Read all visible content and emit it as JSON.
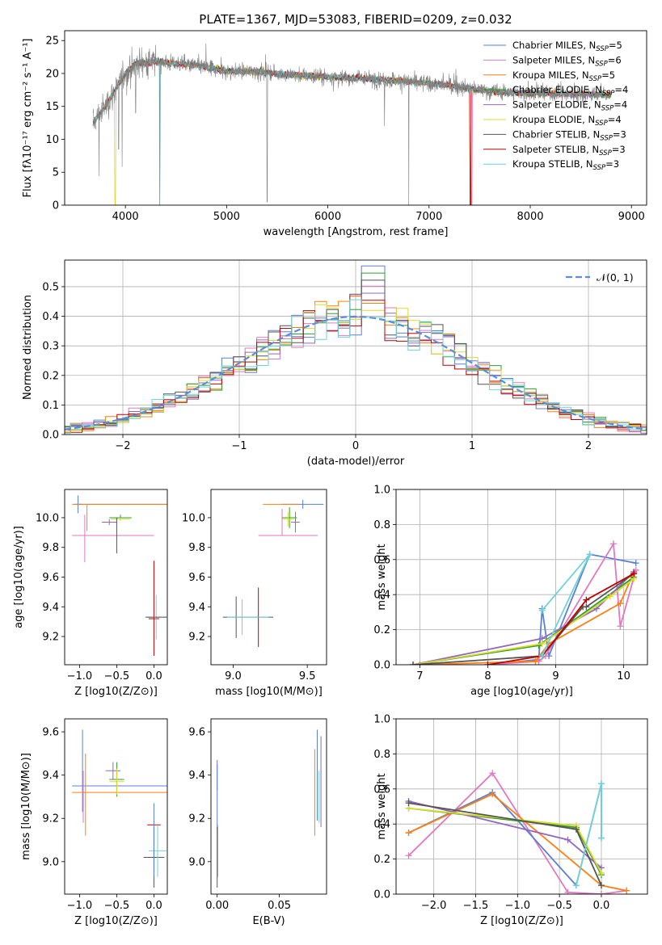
{
  "colors": {
    "chabrier_miles": "#5b7fd6",
    "salpeter_miles": "#e377c2",
    "kroupa_miles": "#ff7f0e",
    "chabrier_elodie": "#2ca02c",
    "salpeter_elodie": "#9467bd",
    "kroupa_elodie": "#dbdb2d",
    "chabrier_stelib": "#555555",
    "salpeter_stelib": "#c00000",
    "kroupa_stelib": "#6dd3d8",
    "normal_fit": "#5b8ed6",
    "grid": "#b0b0b0"
  },
  "chart_data": [
    {
      "id": "spectrum",
      "type": "line",
      "title": "PLATE=1367, MJD=53083, FIBERID=0209, z=0.032",
      "xlabel": "wavelength [Angstrom, rest frame]",
      "ylabel": "Flux [fλ10⁻¹⁷ erg cm⁻² s⁻¹ A⁻¹]",
      "xlim": [
        3400,
        9150
      ],
      "ylim": [
        0,
        26.5
      ],
      "xticks": [
        4000,
        5000,
        6000,
        7000,
        8000,
        9000
      ],
      "yticks": [
        0,
        5,
        10,
        15,
        20,
        25
      ],
      "grid": false,
      "legend": "top-right",
      "legend_entries": [
        {
          "prefix": "Chabrier MILES, N",
          "sub": "SSP",
          "suffix": "=5",
          "color": "chabrier_miles"
        },
        {
          "prefix": "Salpeter MILES, N",
          "sub": "SSP",
          "suffix": "=6",
          "color": "salpeter_miles"
        },
        {
          "prefix": "Kroupa MILES, N",
          "sub": "SSP",
          "suffix": "=5",
          "color": "kroupa_miles"
        },
        {
          "prefix": "Chabrier ELODIE, N",
          "sub": "SSP",
          "suffix": "=4",
          "color": "chabrier_elodie"
        },
        {
          "prefix": "Salpeter ELODIE, N",
          "sub": "SSP",
          "suffix": "=4",
          "color": "salpeter_elodie"
        },
        {
          "prefix": "Kroupa ELODIE, N",
          "sub": "SSP",
          "suffix": "=4",
          "color": "kroupa_elodie"
        },
        {
          "prefix": "Chabrier STELIB, N",
          "sub": "SSP",
          "suffix": "=3",
          "color": "chabrier_stelib"
        },
        {
          "prefix": "Salpeter STELIB, N",
          "sub": "SSP",
          "suffix": "=3",
          "color": "salpeter_stelib"
        },
        {
          "prefix": "Kroupa STELIB, N",
          "sub": "SSP",
          "suffix": "=3",
          "color": "kroupa_stelib"
        }
      ],
      "continuum": [
        [
          3680,
          12.5
        ],
        [
          3800,
          15
        ],
        [
          3900,
          17.5
        ],
        [
          4000,
          20
        ],
        [
          4100,
          21.5
        ],
        [
          4300,
          21.8
        ],
        [
          4500,
          21.5
        ],
        [
          4700,
          21.2
        ],
        [
          5000,
          20.3
        ],
        [
          5300,
          20.3
        ],
        [
          5600,
          19.8
        ],
        [
          6000,
          19.5
        ],
        [
          6400,
          19.2
        ],
        [
          6800,
          18.8
        ],
        [
          7200,
          18.2
        ],
        [
          7600,
          17.3
        ],
        [
          8000,
          17.0
        ],
        [
          8400,
          16.9
        ],
        [
          8800,
          16.8
        ]
      ],
      "dips": [
        [
          3740,
          4.4
        ],
        [
          3933,
          8.5
        ],
        [
          3968,
          5.8
        ],
        [
          4102,
          14
        ],
        [
          4340,
          0
        ],
        [
          5400,
          0.5
        ],
        [
          6560,
          12
        ],
        [
          6800,
          0
        ]
      ],
      "model_cutoffs": [
        {
          "series": "kroupa_elodie",
          "x": 3900
        },
        {
          "series": "kroupa_stelib",
          "x": 4340
        },
        {
          "series": "kroupa_miles",
          "x": 7410
        },
        {
          "series": "salpeter_stelib",
          "x": 7410
        },
        {
          "series": "salpeter_miles",
          "x": 7420
        }
      ]
    },
    {
      "id": "residuals",
      "type": "area",
      "xlabel": "(data-model)/error",
      "ylabel": "Normed distribution",
      "xlim": [
        -2.5,
        2.5
      ],
      "ylim": [
        0,
        0.59
      ],
      "xticks": [
        -2,
        -1,
        0,
        1,
        2
      ],
      "yticks": [
        0.0,
        0.1,
        0.2,
        0.3,
        0.4,
        0.5
      ],
      "grid": true,
      "legend": "top-right",
      "legend_label": "𝒩(0, 1)",
      "bin_width": 0.1,
      "histogram_peaks": [
        0.57,
        0.51,
        0.46
      ]
    },
    {
      "id": "age_vs_Z",
      "type": "scatter",
      "xlabel": "Z [log10(Z/Z⊙)]",
      "ylabel": "age  [log10(age/yr)]",
      "xlim": [
        -1.2,
        0.18
      ],
      "ylim": [
        9.01,
        10.19
      ],
      "xticks": [
        -1.0,
        -0.5,
        0.0
      ],
      "yticks": [
        9.2,
        9.4,
        9.6,
        9.8,
        10.0
      ],
      "points": [
        {
          "series": "chabrier_miles",
          "x": -1.02,
          "y": 10.09,
          "xerr": 0.06,
          "yerr": 0.06
        },
        {
          "series": "chabrier_miles",
          "x": -0.1,
          "y": 10.09,
          "xerr": 0.95,
          "yerr": 0.0
        },
        {
          "series": "salpeter_miles",
          "x": -0.55,
          "y": 9.88,
          "xerr": 0.55,
          "yerr": 0.0
        },
        {
          "series": "salpeter_miles",
          "x": -0.93,
          "y": 9.86,
          "xerr": 0.0,
          "yerr": 0.16
        },
        {
          "series": "kroupa_miles",
          "x": -0.45,
          "y": 10.09,
          "xerr": 0.65,
          "yerr": 0.0
        },
        {
          "series": "kroupa_miles",
          "x": -0.9,
          "y": 10.0,
          "xerr": 0.0,
          "yerr": 0.09
        },
        {
          "series": "chabrier_elodie",
          "x": -0.45,
          "y": 10.0,
          "xerr": 0.15,
          "yerr": 0.02
        },
        {
          "series": "salpeter_elodie",
          "x": -0.6,
          "y": 9.97,
          "xerr": 0.1,
          "yerr": 0.02
        },
        {
          "series": "kroupa_elodie",
          "x": -0.45,
          "y": 9.99,
          "xerr": 0.13,
          "yerr": 0.01
        },
        {
          "series": "chabrier_stelib",
          "x": -0.5,
          "y": 9.88,
          "xerr": 0.0,
          "yerr": 0.12
        },
        {
          "series": "salpeter_stelib",
          "x": 0.0,
          "y": 9.32,
          "xerr": 0.07,
          "yerr": 0.0
        },
        {
          "series": "salpeter_stelib",
          "x": 0.0,
          "y": 9.32,
          "xerr": 0.0,
          "yerr": 0.25
        },
        {
          "series": "salpeter_stelib",
          "x": 0.0,
          "y": 9.64,
          "xerr": 0.0,
          "yerr": 0.07
        },
        {
          "series": "kroupa_stelib",
          "x": 0.03,
          "y": 9.33,
          "xerr": 0.15,
          "yerr": 0.15
        },
        {
          "series": "chabrier_stelib",
          "x": 0.03,
          "y": 9.33,
          "xerr": 0.14,
          "yerr": 0.0
        }
      ]
    },
    {
      "id": "age_vs_mass",
      "type": "scatter",
      "xlabel": "mass [log10(M/M⊙)]",
      "ylabel": "",
      "xlim": [
        8.85,
        9.63
      ],
      "ylim": [
        9.01,
        10.19
      ],
      "xticks": [
        9.0,
        9.5
      ],
      "yticks": [
        9.2,
        9.4,
        9.6,
        9.8,
        10.0
      ],
      "points": [
        {
          "series": "chabrier_miles",
          "x": 9.47,
          "y": 10.09,
          "xerr": 0.14,
          "yerr": 0.03
        },
        {
          "series": "salpeter_miles",
          "x": 9.37,
          "y": 9.88,
          "xerr": 0.2,
          "yerr": 0.0
        },
        {
          "series": "salpeter_miles",
          "x": 9.33,
          "y": 9.97,
          "xerr": 0.0,
          "yerr": 0.09
        },
        {
          "series": "kroupa_miles",
          "x": 9.32,
          "y": 10.09,
          "xerr": 0.12,
          "yerr": 0.0
        },
        {
          "series": "chabrier_elodie",
          "x": 9.38,
          "y": 10.0,
          "xerr": 0.05,
          "yerr": 0.07
        },
        {
          "series": "salpeter_elodie",
          "x": 9.42,
          "y": 9.97,
          "xerr": 0.03,
          "yerr": 0.07
        },
        {
          "series": "kroupa_elodie",
          "x": 9.37,
          "y": 9.99,
          "xerr": 0.04,
          "yerr": 0.05
        },
        {
          "series": "chabrier_stelib",
          "x": 9.02,
          "y": 9.33,
          "xerr": 0.0,
          "yerr": 0.14
        },
        {
          "series": "salpeter_stelib",
          "x": 9.17,
          "y": 9.33,
          "xerr": 0.0,
          "yerr": 0.2
        },
        {
          "series": "kroupa_stelib",
          "x": 9.06,
          "y": 9.33,
          "xerr": 0.0,
          "yerr": 0.12
        },
        {
          "series": "chabrier_stelib",
          "x": 9.1,
          "y": 9.33,
          "xerr": 0.17,
          "yerr": 0.0
        },
        {
          "series": "kroupa_stelib",
          "x": 9.1,
          "y": 9.33,
          "xerr": 0.14,
          "yerr": 0.0
        }
      ]
    },
    {
      "id": "weight_vs_age",
      "type": "line",
      "xlabel": "age  [log10(age/yr)]",
      "ylabel": "mass weight",
      "xlim": [
        6.65,
        10.35
      ],
      "ylim": [
        0,
        1.0
      ],
      "xticks": [
        7,
        8,
        9,
        10
      ],
      "yticks": [
        0.0,
        0.2,
        0.4,
        0.6,
        0.8,
        1.0
      ],
      "grid": true,
      "series": [
        {
          "key": "chabrier_miles",
          "x": [
            8.0,
            8.75,
            8.8,
            8.9,
            9.5,
            10.18
          ],
          "y": [
            0.0,
            0.03,
            0.32,
            0.05,
            0.63,
            0.58
          ]
        },
        {
          "key": "salpeter_miles",
          "x": [
            8.0,
            8.75,
            8.85,
            9.85,
            9.95,
            10.18
          ],
          "y": [
            0.0,
            0.02,
            0.05,
            0.69,
            0.22,
            0.54
          ]
        },
        {
          "key": "kroupa_miles",
          "x": [
            7.0,
            8.7,
            8.9,
            9.95,
            10.15
          ],
          "y": [
            0.0,
            0.02,
            0.12,
            0.35,
            0.53
          ]
        },
        {
          "key": "chabrier_elodie",
          "x": [
            6.9,
            8.75,
            10.15
          ],
          "y": [
            0.0,
            0.11,
            0.5
          ]
        },
        {
          "key": "salpeter_elodie",
          "x": [
            6.9,
            8.8,
            9.6,
            10.15
          ],
          "y": [
            0.0,
            0.15,
            0.32,
            0.53
          ]
        },
        {
          "key": "kroupa_elodie",
          "x": [
            6.9,
            8.8,
            9.8,
            10.15
          ],
          "y": [
            0.0,
            0.12,
            0.39,
            0.49
          ]
        },
        {
          "key": "chabrier_stelib",
          "x": [
            6.9,
            8.8,
            9.4,
            9.45,
            10.15
          ],
          "y": [
            0.0,
            0.05,
            0.33,
            0.33,
            0.52
          ]
        },
        {
          "key": "salpeter_stelib",
          "x": [
            8.0,
            8.8,
            9.45,
            10.15
          ],
          "y": [
            0.0,
            0.05,
            0.37,
            0.52
          ]
        },
        {
          "key": "kroupa_stelib",
          "x": [
            8.8,
            9.5,
            8.8
          ],
          "y": [
            0.31,
            0.63,
            0.05
          ]
        }
      ]
    },
    {
      "id": "mass_vs_Z",
      "type": "scatter",
      "xlabel": "Z [log10(Z/Z⊙)]",
      "ylabel": "mass [log10(M/M⊙)]",
      "xlim": [
        -1.2,
        0.18
      ],
      "ylim": [
        8.85,
        9.66
      ],
      "xticks": [
        -1.0,
        -0.5,
        0.0
      ],
      "yticks": [
        9.0,
        9.2,
        9.4,
        9.6
      ],
      "points": [
        {
          "series": "chabrier_miles",
          "x": -0.45,
          "y": 9.35,
          "xerr": 0.65,
          "yerr": 0.0
        },
        {
          "series": "chabrier_miles",
          "x": -0.96,
          "y": 9.42,
          "xerr": 0.0,
          "yerr": 0.19
        },
        {
          "series": "salpeter_miles",
          "x": -0.95,
          "y": 9.3,
          "xerr": 0.0,
          "yerr": 0.12
        },
        {
          "series": "kroupa_miles",
          "x": -0.45,
          "y": 9.32,
          "xerr": 0.65,
          "yerr": 0.0
        },
        {
          "series": "kroupa_miles",
          "x": -0.92,
          "y": 9.31,
          "xerr": 0.0,
          "yerr": 0.19
        },
        {
          "series": "chabrier_elodie",
          "x": -0.5,
          "y": 9.38,
          "xerr": 0.1,
          "yerr": 0.08
        },
        {
          "series": "salpeter_elodie",
          "x": -0.55,
          "y": 9.42,
          "xerr": 0.1,
          "yerr": 0.04
        },
        {
          "series": "kroupa_elodie",
          "x": -0.5,
          "y": 9.37,
          "xerr": 0.1,
          "yerr": 0.06
        },
        {
          "series": "chabrier_stelib",
          "x": 0.0,
          "y": 9.02,
          "xerr": 0.14,
          "yerr": 0.14
        },
        {
          "series": "salpeter_stelib",
          "x": 0.0,
          "y": 9.17,
          "xerr": 0.09,
          "yerr": 0.0
        },
        {
          "series": "kroupa_stelib",
          "x": 0.05,
          "y": 9.05,
          "xerr": 0.12,
          "yerr": 0.12
        },
        {
          "series": "chabrier_miles",
          "x": 0.0,
          "y": 9.1,
          "xerr": 0.0,
          "yerr": 0.17
        }
      ]
    },
    {
      "id": "mass_vs_ebv",
      "type": "scatter",
      "xlabel": "E(B-V)",
      "ylabel": "",
      "xlim": [
        -0.005,
        0.088
      ],
      "ylim": [
        8.85,
        9.66
      ],
      "xticks": [
        0.0,
        0.05
      ],
      "yticks": [
        9.0,
        9.2,
        9.4,
        9.6
      ],
      "points": [
        {
          "series": "chabrier_miles",
          "x": 0.0805,
          "y": 9.4,
          "xerr": 0.0,
          "yerr": 0.21
        },
        {
          "series": "kroupa_miles",
          "x": 0.0785,
          "y": 9.32,
          "xerr": 0.0,
          "yerr": 0.2
        },
        {
          "series": "salpeter_elodie",
          "x": 0.0835,
          "y": 9.37,
          "xerr": 0.0,
          "yerr": 0.21
        },
        {
          "series": "kroupa_stelib",
          "x": 0.082,
          "y": 9.3,
          "xerr": 0.0,
          "yerr": 0.12
        },
        {
          "series": "salpeter_elodie",
          "x": 0.0,
          "y": 9.4,
          "xerr": 0.0,
          "yerr": 0.07
        },
        {
          "series": "kroupa_elodie",
          "x": 0.0,
          "y": 9.37,
          "xerr": 0.0,
          "yerr": 0.03
        },
        {
          "series": "chabrier_miles",
          "x": 0.0,
          "y": 9.3,
          "xerr": 0.0,
          "yerr": 0.15
        },
        {
          "series": "kroupa_stelib",
          "x": 0.0005,
          "y": 9.05,
          "xerr": 0.0,
          "yerr": 0.12
        },
        {
          "series": "chabrier_stelib",
          "x": 0.0,
          "y": 9.02,
          "xerr": 0.0,
          "yerr": 0.14
        }
      ]
    },
    {
      "id": "weight_vs_Z",
      "type": "line",
      "xlabel": "Z [log10(Z/Z⊙)]",
      "ylabel": "mass weight",
      "xlim": [
        -2.45,
        0.55
      ],
      "ylim": [
        0,
        1.0
      ],
      "xticks": [
        -2.0,
        -1.5,
        -1.0,
        -0.5,
        0.0
      ],
      "yticks": [
        0.0,
        0.2,
        0.4,
        0.6,
        0.8,
        1.0
      ],
      "grid": true,
      "series": [
        {
          "key": "salpeter_miles",
          "x": [
            -2.3,
            -1.3,
            -0.4,
            0.0,
            0.3
          ],
          "y": [
            0.22,
            0.69,
            0.01,
            0.0,
            0.02
          ]
        },
        {
          "key": "chabrier_miles",
          "x": [
            -2.3,
            -1.3,
            -0.3,
            0.0,
            0.0
          ],
          "y": [
            0.35,
            0.58,
            0.05,
            0.63,
            0.32
          ]
        },
        {
          "key": "kroupa_miles",
          "x": [
            -2.3,
            -1.3,
            0.0,
            0.3
          ],
          "y": [
            0.35,
            0.57,
            0.05,
            0.02
          ]
        },
        {
          "key": "chabrier_elodie",
          "x": [
            -2.3,
            -0.3,
            0.0
          ],
          "y": [
            0.49,
            0.38,
            0.11
          ]
        },
        {
          "key": "salpeter_elodie",
          "x": [
            -2.3,
            -0.4,
            0.0
          ],
          "y": [
            0.53,
            0.31,
            0.15
          ]
        },
        {
          "key": "kroupa_elodie",
          "x": [
            -2.3,
            -0.3,
            0.0
          ],
          "y": [
            0.49,
            0.39,
            0.12
          ]
        },
        {
          "key": "chabrier_stelib",
          "x": [
            -2.3,
            -0.3,
            0.0
          ],
          "y": [
            0.52,
            0.37,
            0.05
          ]
        },
        {
          "key": "kroupa_stelib",
          "x": [
            -0.3,
            0.0,
            0.0
          ],
          "y": [
            0.05,
            0.63,
            0.32
          ]
        }
      ]
    }
  ]
}
